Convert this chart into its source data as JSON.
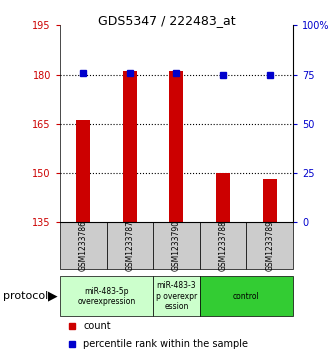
{
  "title": "GDS5347 / 222483_at",
  "samples": [
    "GSM1233786",
    "GSM1233787",
    "GSM1233790",
    "GSM1233788",
    "GSM1233789"
  ],
  "bar_values": [
    166,
    181,
    181,
    150,
    148
  ],
  "bar_base": 135,
  "bar_color": "#cc0000",
  "dot_values": [
    76,
    76,
    76,
    75,
    75
  ],
  "dot_color": "#0000cc",
  "left_ylim": [
    135,
    195
  ],
  "left_yticks": [
    135,
    150,
    165,
    180,
    195
  ],
  "right_ylim": [
    0,
    100
  ],
  "right_yticks": [
    0,
    25,
    50,
    75,
    100
  ],
  "right_yticklabels": [
    "0",
    "25",
    "50",
    "75",
    "100%"
  ],
  "left_tick_color": "#cc0000",
  "right_tick_color": "#0000cc",
  "hline_values": [
    150,
    165,
    180
  ],
  "groups": [
    {
      "label": "miR-483-5p\noverexpression",
      "samples": [
        "GSM1233786",
        "GSM1233787"
      ],
      "color": "#ccffcc"
    },
    {
      "label": "miR-483-3\np overexpr\nession",
      "samples": [
        "GSM1233790"
      ],
      "color": "#ccffcc"
    },
    {
      "label": "control",
      "samples": [
        "GSM1233788",
        "GSM1233789"
      ],
      "color": "#33cc33"
    }
  ],
  "protocol_label": "protocol",
  "legend_count_label": "count",
  "legend_pct_label": "percentile rank within the sample",
  "bg_color": "#ffffff",
  "plot_bg_color": "#ffffff",
  "sample_box_color": "#cccccc",
  "group_border_color": "#000000"
}
